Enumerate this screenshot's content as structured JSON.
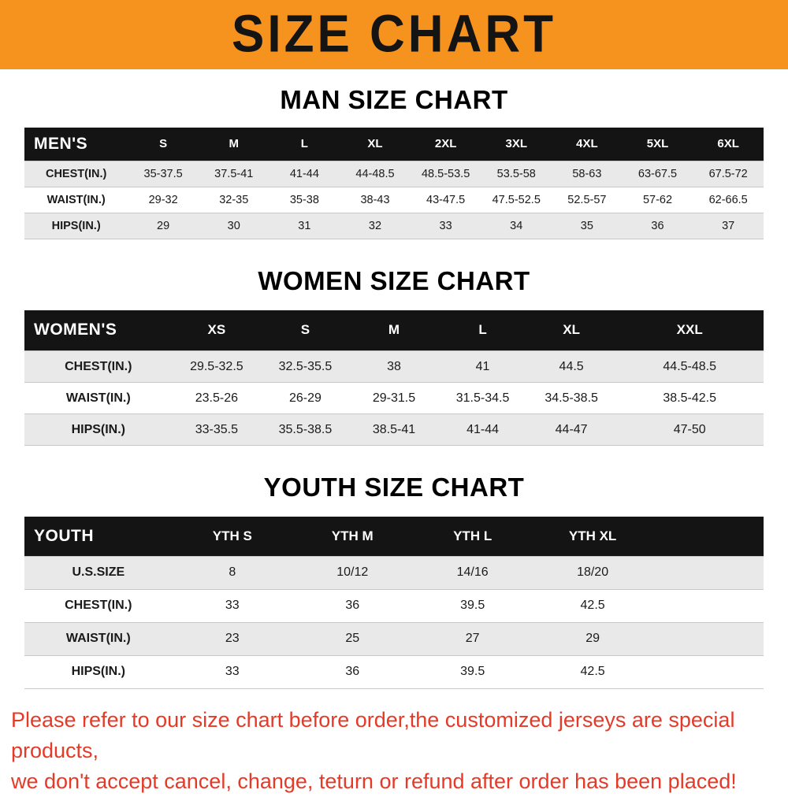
{
  "banner": {
    "title": "SIZE CHART"
  },
  "sections": [
    {
      "id": "men",
      "heading": "MAN SIZE CHART",
      "table": {
        "header_label": "MEN'S",
        "columns": [
          "S",
          "M",
          "L",
          "XL",
          "2XL",
          "3XL",
          "4XL",
          "5XL",
          "6XL"
        ],
        "rows": [
          {
            "label": "CHEST(IN.)",
            "values": [
              "35-37.5",
              "37.5-41",
              "41-44",
              "44-48.5",
              "48.5-53.5",
              "53.5-58",
              "58-63",
              "63-67.5",
              "67.5-72"
            ]
          },
          {
            "label": "WAIST(IN.)",
            "values": [
              "29-32",
              "32-35",
              "35-38",
              "38-43",
              "43-47.5",
              "47.5-52.5",
              "52.5-57",
              "57-62",
              "62-66.5"
            ]
          },
          {
            "label": "HIPS(IN.)",
            "values": [
              "29",
              "30",
              "31",
              "32",
              "33",
              "34",
              "35",
              "36",
              "37"
            ]
          }
        ]
      }
    },
    {
      "id": "women",
      "heading": "WOMEN SIZE CHART",
      "table": {
        "header_label": "WOMEN'S",
        "columns": [
          "XS",
          "S",
          "M",
          "L",
          "XL",
          "XXL"
        ],
        "rows": [
          {
            "label": "CHEST(IN.)",
            "values": [
              "29.5-32.5",
              "32.5-35.5",
              "38",
              "41",
              "44.5",
              "44.5-48.5"
            ]
          },
          {
            "label": "WAIST(IN.)",
            "values": [
              "23.5-26",
              "26-29",
              "29-31.5",
              "31.5-34.5",
              "34.5-38.5",
              "38.5-42.5"
            ]
          },
          {
            "label": "HIPS(IN.)",
            "values": [
              "33-35.5",
              "35.5-38.5",
              "38.5-41",
              "41-44",
              "44-47",
              "47-50"
            ]
          }
        ]
      }
    },
    {
      "id": "youth",
      "heading": "YOUTH SIZE CHART",
      "table": {
        "header_label": "YOUTH",
        "columns": [
          "YTH S",
          "YTH M",
          "YTH L",
          "YTH XL"
        ],
        "rows": [
          {
            "label": "U.S.SIZE",
            "values": [
              "8",
              "10/12",
              "14/16",
              "18/20"
            ]
          },
          {
            "label": "CHEST(IN.)",
            "values": [
              "33",
              "36",
              "39.5",
              "42.5"
            ]
          },
          {
            "label": "WAIST(IN.)",
            "values": [
              "23",
              "25",
              "27",
              "29"
            ]
          },
          {
            "label": "HIPS(IN.)",
            "values": [
              "33",
              "36",
              "39.5",
              "42.5"
            ]
          }
        ]
      }
    }
  ],
  "footer": {
    "line1": "Please refer to our size chart before order,the customized jerseys are special products,",
    "line2": "we don't accept cancel, change, teturn or refund after order has been placed!"
  },
  "colors": {
    "banner_bg": "#f6921e",
    "table_header_bg": "#141414",
    "row_alt_bg": "#e9e9e9",
    "note_red": "#e53a28"
  }
}
